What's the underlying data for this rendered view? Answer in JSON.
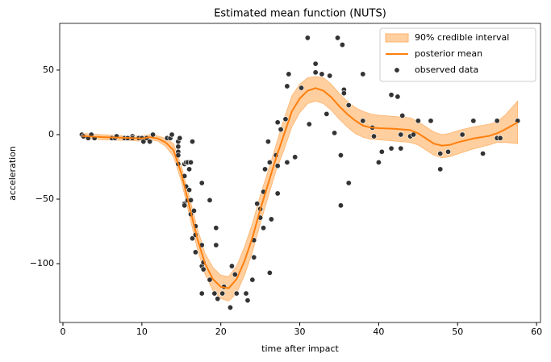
{
  "chart_data": {
    "type": "line",
    "title": "Estimated mean function (NUTS)",
    "x_label": "time after impact",
    "y_label": "acceleration",
    "xlim": [
      -0.41,
      60.5
    ],
    "ylim": [
      -145.6,
      86.2
    ],
    "xticks": [
      0,
      10,
      20,
      30,
      40,
      50,
      60
    ],
    "yticks": [
      {
        "value": -100,
        "label": "−100"
      },
      {
        "value": -50,
        "label": "−50"
      },
      0,
      50
    ],
    "grid": false,
    "legend": "upper right",
    "x": [
      2.4,
      5,
      8,
      10,
      11,
      12,
      13,
      14,
      15,
      16,
      17,
      18,
      19,
      20,
      21,
      22,
      23,
      24,
      25,
      26,
      27,
      28,
      29,
      30,
      31,
      32,
      33,
      34,
      35,
      36,
      37,
      38,
      39,
      40,
      42,
      44,
      45,
      46,
      47,
      48,
      49,
      50,
      52,
      54,
      55,
      56,
      57.6
    ],
    "band": {
      "name": "90% credible interval",
      "color": "#ffcf9f",
      "lower": [
        -3,
        -4,
        -4.5,
        -5,
        -4,
        -5,
        -9,
        -17,
        -36,
        -62,
        -88,
        -108,
        -121,
        -127,
        -129,
        -123,
        -109,
        -91,
        -69,
        -48,
        -28,
        -12,
        6,
        17,
        24,
        26,
        24,
        19,
        12,
        6,
        1,
        -2,
        -3.5,
        -4,
        -5,
        -6,
        -8,
        -12,
        -16,
        -18,
        -17,
        -15,
        -11,
        -8,
        -6,
        -6,
        -7
      ],
      "upper": [
        1,
        0,
        -1,
        -1,
        0,
        -1,
        -3,
        -7,
        -24,
        -48,
        -72,
        -92,
        -103,
        -109,
        -110,
        -102,
        -87,
        -69,
        -47,
        -28,
        -8,
        12,
        30,
        39,
        44,
        45,
        44,
        39,
        32,
        26,
        21,
        18,
        16,
        15,
        14,
        13,
        10,
        6,
        2,
        0,
        1,
        3,
        6,
        8,
        10,
        15,
        26
      ]
    },
    "series": [
      {
        "name": "posterior mean",
        "color": "#ff7f0e",
        "values": [
          -1,
          -2,
          -2.5,
          -3,
          -2,
          -3,
          -6,
          -12,
          -30,
          -55,
          -80,
          -100,
          -112,
          -118,
          -119,
          -112,
          -98,
          -80,
          -58,
          -38,
          -18,
          0,
          18,
          28,
          34,
          36,
          34,
          29,
          22,
          16,
          11,
          7,
          5.5,
          5,
          4.5,
          3.5,
          1,
          -3,
          -7,
          -8.5,
          -8,
          -6,
          -3,
          -1,
          1,
          4,
          9.5
        ]
      }
    ],
    "scatter": {
      "name": "observed data",
      "color": "#333333",
      "x": [
        2.4,
        2.6,
        3.2,
        3.6,
        4.0,
        6.2,
        6.6,
        6.8,
        7.8,
        8.2,
        8.8,
        8.8,
        9.6,
        10.0,
        10.2,
        10.6,
        11.0,
        11.4,
        13.2,
        13.6,
        13.8,
        14.6,
        14.6,
        14.6,
        14.6,
        14.6,
        14.6,
        14.8,
        15.4,
        15.4,
        15.4,
        15.4,
        15.6,
        15.6,
        15.8,
        15.8,
        16.0,
        16.0,
        16.2,
        16.2,
        16.2,
        16.4,
        16.4,
        16.6,
        16.8,
        16.8,
        16.8,
        17.6,
        17.6,
        17.6,
        17.6,
        17.8,
        17.8,
        18.6,
        18.6,
        19.2,
        19.4,
        19.4,
        19.6,
        20.2,
        20.4,
        21.2,
        21.4,
        21.8,
        22.0,
        23.2,
        23.4,
        24.0,
        24.2,
        24.2,
        24.6,
        25.0,
        25.0,
        25.4,
        25.4,
        25.6,
        26.0,
        26.2,
        26.2,
        26.4,
        27.0,
        27.2,
        27.2,
        27.2,
        27.6,
        28.2,
        28.4,
        28.4,
        28.6,
        29.4,
        30.2,
        31.0,
        31.2,
        32.0,
        32.0,
        32.8,
        33.4,
        33.8,
        34.4,
        34.8,
        35.2,
        35.2,
        35.4,
        35.6,
        35.6,
        36.2,
        36.2,
        38.0,
        38.0,
        39.2,
        39.4,
        40.0,
        40.4,
        41.6,
        41.6,
        42.4,
        42.8,
        42.8,
        43.0,
        44.0,
        44.4,
        45.0,
        46.6,
        47.8,
        47.8,
        48.8,
        50.6,
        52.0,
        53.2,
        55.0,
        55.0,
        55.4,
        57.6
      ],
      "values": [
        0.0,
        -1.3,
        -2.7,
        0.0,
        -2.7,
        -2.7,
        -2.7,
        -1.3,
        -2.7,
        -2.7,
        -1.3,
        -2.7,
        -2.7,
        -2.7,
        -5.4,
        -2.7,
        -5.4,
        0.0,
        -2.7,
        -2.7,
        0.0,
        -13.3,
        -5.4,
        -5.4,
        -9.3,
        -16.0,
        -22.8,
        -2.7,
        -22.8,
        -32.1,
        -53.5,
        -54.9,
        -40.2,
        -21.5,
        -21.5,
        -50.8,
        -42.9,
        -26.8,
        -21.5,
        -50.8,
        -61.7,
        -5.4,
        -80.4,
        -59.0,
        -71.0,
        -91.1,
        -77.7,
        -37.5,
        -85.6,
        -123.1,
        -101.9,
        -99.1,
        -104.4,
        -112.5,
        -50.8,
        -123.1,
        -85.6,
        -72.3,
        -127.2,
        -123.1,
        -117.9,
        -134.0,
        -101.9,
        -108.4,
        -123.1,
        -123.1,
        -128.5,
        -112.5,
        -95.1,
        -81.8,
        -53.5,
        -64.4,
        -57.6,
        -72.3,
        -44.3,
        -26.8,
        -5.4,
        -107.1,
        -21.5,
        -65.6,
        -16.0,
        -45.6,
        -24.2,
        9.5,
        4.0,
        12.0,
        -21.5,
        37.5,
        46.9,
        -17.4,
        36.2,
        75.0,
        8.1,
        54.9,
        48.2,
        46.9,
        16.0,
        45.6,
        1.3,
        75.0,
        -16.0,
        -54.9,
        69.6,
        34.8,
        32.1,
        -37.5,
        22.8,
        46.9,
        10.7,
        5.4,
        -1.3,
        -21.5,
        -13.3,
        30.8,
        -10.7,
        29.4,
        0.0,
        -10.7,
        14.7,
        -1.3,
        0.0,
        10.7,
        10.7,
        -26.8,
        -14.7,
        -13.3,
        0.0,
        10.7,
        -14.7,
        -2.7,
        10.7,
        -2.7,
        10.7
      ]
    }
  }
}
